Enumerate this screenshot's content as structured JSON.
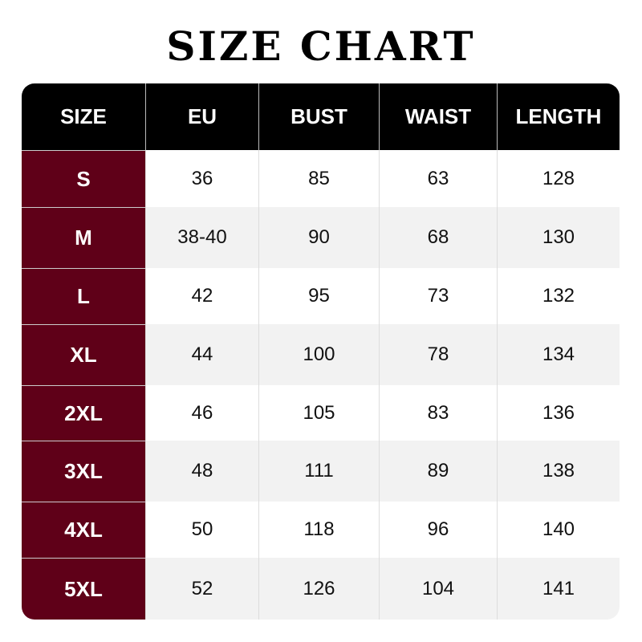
{
  "title": "SIZE CHART",
  "colors": {
    "header_bg": "#000000",
    "size_col_bg": "#5f0018",
    "alt_row_bg": "#f2f2f2"
  },
  "headers": [
    "SIZE",
    "EU",
    "BUST",
    "WAIST",
    "LENGTH"
  ],
  "rows": [
    [
      "S",
      "36",
      "85",
      "63",
      "128"
    ],
    [
      "M",
      "38-40",
      "90",
      "68",
      "130"
    ],
    [
      "L",
      "42",
      "95",
      "73",
      "132"
    ],
    [
      "XL",
      "44",
      "100",
      "78",
      "134"
    ],
    [
      "2XL",
      "46",
      "105",
      "83",
      "136"
    ],
    [
      "3XL",
      "48",
      "111",
      "89",
      "138"
    ],
    [
      "4XL",
      "50",
      "118",
      "96",
      "140"
    ],
    [
      "5XL",
      "52",
      "126",
      "104",
      "141"
    ]
  ]
}
